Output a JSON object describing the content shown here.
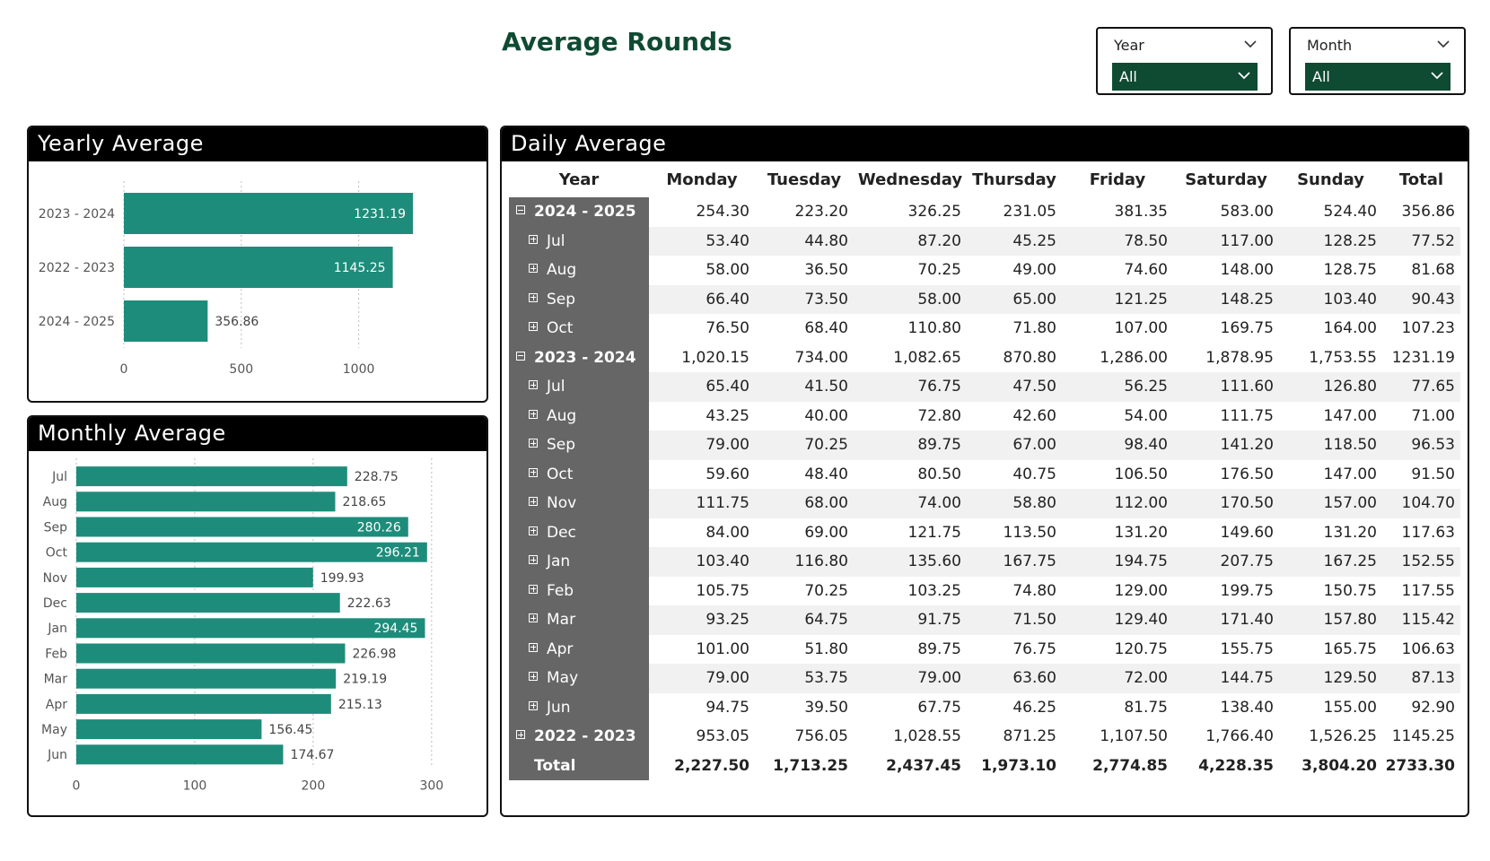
{
  "page": {
    "title": "Average Rounds"
  },
  "slicers": [
    {
      "label": "Year",
      "selected": "All"
    },
    {
      "label": "Month",
      "selected": "All"
    }
  ],
  "chart_data": [
    {
      "type": "bar",
      "orientation": "horizontal",
      "title": "Yearly Average",
      "categories": [
        "2023 - 2024",
        "2022 - 2023",
        "2024 - 2025"
      ],
      "values": [
        1231.19,
        1145.25,
        356.86
      ],
      "value_labels": [
        "1231.19",
        "1145.25",
        "356.86"
      ],
      "xlim": [
        0,
        1250
      ],
      "ticks": [
        0,
        500,
        1000
      ],
      "tick_labels": [
        "0",
        "500",
        "1000"
      ],
      "grid": true,
      "color": "#1e8c7b"
    },
    {
      "type": "bar",
      "orientation": "horizontal",
      "title": "Monthly Average",
      "categories": [
        "Jul",
        "Aug",
        "Sep",
        "Oct",
        "Nov",
        "Dec",
        "Jan",
        "Feb",
        "Mar",
        "Apr",
        "May",
        "Jun"
      ],
      "values": [
        228.75,
        218.65,
        280.26,
        296.21,
        199.93,
        222.63,
        294.45,
        226.98,
        219.19,
        215.13,
        156.45,
        174.67
      ],
      "value_labels": [
        "228.75",
        "218.65",
        "280.26",
        "296.21",
        "199.93",
        "222.63",
        "294.45",
        "226.98",
        "219.19",
        "215.13",
        "156.45",
        "174.67"
      ],
      "xlim": [
        0,
        310
      ],
      "ticks": [
        0,
        100,
        200,
        300
      ],
      "tick_labels": [
        "0",
        "100",
        "200",
        "300"
      ],
      "grid": true,
      "color": "#1e8c7b"
    },
    {
      "type": "table",
      "title": "Daily Average",
      "columns": [
        "Year",
        "Monday",
        "Tuesday",
        "Wednesday",
        "Thursday",
        "Friday",
        "Saturday",
        "Sunday",
        "Total"
      ],
      "rows": [
        {
          "label": "2024 - 2025",
          "level": 1,
          "expanded": true,
          "values": [
            "254.30",
            "223.20",
            "326.25",
            "231.05",
            "381.35",
            "583.00",
            "524.40",
            "356.86"
          ]
        },
        {
          "label": "Jul",
          "level": 2,
          "values": [
            "53.40",
            "44.80",
            "87.20",
            "45.25",
            "78.50",
            "117.00",
            "128.25",
            "77.52"
          ]
        },
        {
          "label": "Aug",
          "level": 2,
          "values": [
            "58.00",
            "36.50",
            "70.25",
            "49.00",
            "74.60",
            "148.00",
            "128.75",
            "81.68"
          ]
        },
        {
          "label": "Sep",
          "level": 2,
          "values": [
            "66.40",
            "73.50",
            "58.00",
            "65.00",
            "121.25",
            "148.25",
            "103.40",
            "90.43"
          ]
        },
        {
          "label": "Oct",
          "level": 2,
          "values": [
            "76.50",
            "68.40",
            "110.80",
            "71.80",
            "107.00",
            "169.75",
            "164.00",
            "107.23"
          ]
        },
        {
          "label": "2023 - 2024",
          "level": 1,
          "expanded": true,
          "values": [
            "1,020.15",
            "734.00",
            "1,082.65",
            "870.80",
            "1,286.00",
            "1,878.95",
            "1,753.55",
            "1231.19"
          ]
        },
        {
          "label": "Jul",
          "level": 2,
          "values": [
            "65.40",
            "41.50",
            "76.75",
            "47.50",
            "56.25",
            "111.60",
            "126.80",
            "77.65"
          ]
        },
        {
          "label": "Aug",
          "level": 2,
          "values": [
            "43.25",
            "40.00",
            "72.80",
            "42.60",
            "54.00",
            "111.75",
            "147.00",
            "71.00"
          ]
        },
        {
          "label": "Sep",
          "level": 2,
          "values": [
            "79.00",
            "70.25",
            "89.75",
            "67.00",
            "98.40",
            "141.20",
            "118.50",
            "96.53"
          ]
        },
        {
          "label": "Oct",
          "level": 2,
          "values": [
            "59.60",
            "48.40",
            "80.50",
            "40.75",
            "106.50",
            "176.50",
            "147.00",
            "91.50"
          ]
        },
        {
          "label": "Nov",
          "level": 2,
          "values": [
            "111.75",
            "68.00",
            "74.00",
            "58.80",
            "112.00",
            "170.50",
            "157.00",
            "104.70"
          ]
        },
        {
          "label": "Dec",
          "level": 2,
          "values": [
            "84.00",
            "69.00",
            "121.75",
            "113.50",
            "131.20",
            "149.60",
            "131.20",
            "117.63"
          ]
        },
        {
          "label": "Jan",
          "level": 2,
          "values": [
            "103.40",
            "116.80",
            "135.60",
            "167.75",
            "194.75",
            "207.75",
            "167.25",
            "152.55"
          ]
        },
        {
          "label": "Feb",
          "level": 2,
          "values": [
            "105.75",
            "70.25",
            "103.25",
            "74.80",
            "129.00",
            "199.75",
            "150.75",
            "117.55"
          ]
        },
        {
          "label": "Mar",
          "level": 2,
          "values": [
            "93.25",
            "64.75",
            "91.75",
            "71.50",
            "129.40",
            "171.40",
            "157.80",
            "115.42"
          ]
        },
        {
          "label": "Apr",
          "level": 2,
          "values": [
            "101.00",
            "51.80",
            "89.75",
            "76.75",
            "120.75",
            "155.75",
            "165.75",
            "106.63"
          ]
        },
        {
          "label": "May",
          "level": 2,
          "values": [
            "79.00",
            "53.75",
            "79.00",
            "63.60",
            "72.00",
            "144.75",
            "129.50",
            "87.13"
          ]
        },
        {
          "label": "Jun",
          "level": 2,
          "values": [
            "94.75",
            "39.50",
            "67.75",
            "46.25",
            "81.75",
            "138.40",
            "155.00",
            "92.90"
          ]
        },
        {
          "label": "2022 - 2023",
          "level": 1,
          "expanded": false,
          "values": [
            "953.05",
            "756.05",
            "1,028.55",
            "871.25",
            "1,107.50",
            "1,766.40",
            "1,526.25",
            "1145.25"
          ]
        },
        {
          "label": "Total",
          "level": 0,
          "values": [
            "2,227.50",
            "1,713.25",
            "2,437.45",
            "1,973.10",
            "2,774.85",
            "4,228.35",
            "3,804.20",
            "2733.30"
          ]
        }
      ]
    }
  ]
}
